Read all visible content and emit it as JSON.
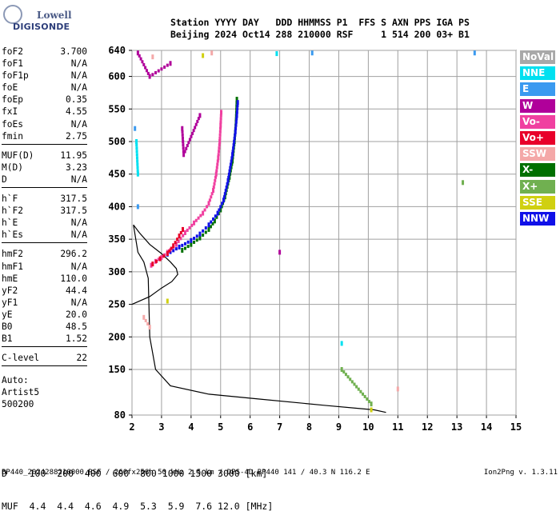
{
  "logo": {
    "line1": "Lowell",
    "line2": "DIGISONDE"
  },
  "header": {
    "line1": "Station YYYY DAY   DDD HHMMSS P1  FFS S AXN PPS IGA PS",
    "line2": "Beijing 2024 Oct14 288 210000 RSF     1 514 200 03+ B1"
  },
  "params": [
    {
      "label": "foF2",
      "value": "3.700"
    },
    {
      "label": "foF1",
      "value": "N/A"
    },
    {
      "label": "foF1p",
      "value": "N/A"
    },
    {
      "label": "foE",
      "value": "N/A"
    },
    {
      "label": "foEp",
      "value": "0.35"
    },
    {
      "label": "fxI",
      "value": "4.55"
    },
    {
      "label": "foEs",
      "value": "N/A"
    },
    {
      "label": "fmin",
      "value": "2.75"
    },
    {
      "sep": true
    },
    {
      "label": "MUF(D)",
      "value": "11.95"
    },
    {
      "label": "M(D)",
      "value": "3.23"
    },
    {
      "label": "D",
      "value": "N/A"
    },
    {
      "sep": true
    },
    {
      "label": "h`F",
      "value": "317.5"
    },
    {
      "label": "h`F2",
      "value": "317.5"
    },
    {
      "label": "h`E",
      "value": "N/A"
    },
    {
      "label": "h`Es",
      "value": "N/A"
    },
    {
      "sep": true
    },
    {
      "label": "hmF2",
      "value": "296.2"
    },
    {
      "label": "hmF1",
      "value": "N/A"
    },
    {
      "label": "hmE",
      "value": "110.0"
    },
    {
      "label": "yF2",
      "value": "44.4"
    },
    {
      "label": "yF1",
      "value": "N/A"
    },
    {
      "label": "yE",
      "value": "20.0"
    },
    {
      "label": "B0",
      "value": "48.5"
    },
    {
      "label": "B1",
      "value": "1.52"
    },
    {
      "sep": true
    },
    {
      "label": "C-level",
      "value": "22"
    },
    {
      "sep": true
    }
  ],
  "auto": {
    "line1": "Auto:",
    "line2": "Artist5",
    "line3": "500200"
  },
  "legend": [
    {
      "label": "NoVal",
      "color": "#a8a8a8"
    },
    {
      "label": "NNE",
      "color": "#00e0f0"
    },
    {
      "label": "E",
      "color": "#3a9af0"
    },
    {
      "label": "W",
      "color": "#b0009a"
    },
    {
      "label": "Vo-",
      "color": "#f040a0"
    },
    {
      "label": "Vo+",
      "color": "#e8002a"
    },
    {
      "label": "SSW",
      "color": "#f4a8a8"
    },
    {
      "label": "X-",
      "color": "#007000"
    },
    {
      "label": "X+",
      "color": "#70b050"
    },
    {
      "label": "SSE",
      "color": "#d0d010"
    },
    {
      "label": "NNW",
      "color": "#1010e8"
    }
  ],
  "muf_table": {
    "d_line": "D    100  200  400  600  800 1000 1500 3000 [km]",
    "muf_line": "MUF  4.4  4.4  4.6  4.9  5.3  5.9  7.6 12.0 [MHz]"
  },
  "footer": {
    "left": "BP440_2024288210000.RSF / 260fx256h 50 kHz 2.5 km / DPS-4D BP440 141 / 40.3 N 116.2 E",
    "right": "Ion2Png v. 1.3.11"
  },
  "chart_data": {
    "type": "scatter",
    "title": "",
    "xlabel": "",
    "ylabel": "",
    "xlim": [
      2,
      15
    ],
    "ylim": [
      80,
      640
    ],
    "x_ticks": [
      2,
      3,
      4,
      5,
      6,
      7,
      8,
      9,
      10,
      11,
      12,
      13,
      14,
      15
    ],
    "y_ticks": [
      80,
      150,
      200,
      250,
      300,
      350,
      400,
      450,
      500,
      550,
      600,
      640
    ],
    "grid": true,
    "series": [
      {
        "name": "X-",
        "color": "#007000",
        "points": [
          [
            3.7,
            333
          ],
          [
            4.0,
            342
          ],
          [
            4.3,
            352
          ],
          [
            4.6,
            365
          ],
          [
            4.8,
            378
          ],
          [
            5.0,
            395
          ],
          [
            5.15,
            415
          ],
          [
            5.3,
            445
          ],
          [
            5.4,
            470
          ],
          [
            5.47,
            500
          ],
          [
            5.52,
            530
          ],
          [
            5.55,
            565
          ]
        ]
      },
      {
        "name": "NNW",
        "color": "#1010e8",
        "points": [
          [
            3.2,
            327
          ],
          [
            3.6,
            338
          ],
          [
            4.0,
            348
          ],
          [
            4.3,
            358
          ],
          [
            4.6,
            372
          ],
          [
            4.9,
            390
          ],
          [
            5.1,
            410
          ],
          [
            5.25,
            440
          ],
          [
            5.4,
            480
          ],
          [
            5.5,
            515
          ],
          [
            5.55,
            540
          ],
          [
            5.58,
            560
          ]
        ]
      },
      {
        "name": "Vo-",
        "color": "#f040a0",
        "points": [
          [
            2.65,
            310
          ],
          [
            2.8,
            316
          ],
          [
            3.0,
            322
          ],
          [
            3.2,
            330
          ],
          [
            3.5,
            342
          ],
          [
            3.8,
            360
          ],
          [
            4.1,
            375
          ],
          [
            4.4,
            390
          ],
          [
            4.6,
            405
          ],
          [
            4.75,
            425
          ],
          [
            4.85,
            450
          ],
          [
            4.92,
            475
          ],
          [
            4.97,
            500
          ],
          [
            5.0,
            525
          ],
          [
            5.02,
            545
          ]
        ]
      },
      {
        "name": "Vo+",
        "color": "#e8002a",
        "points": [
          [
            2.7,
            312
          ],
          [
            2.95,
            320
          ],
          [
            3.2,
            328
          ],
          [
            3.4,
            340
          ],
          [
            3.6,
            355
          ],
          [
            3.72,
            365
          ]
        ]
      },
      {
        "name": "W",
        "color": "#b0009a",
        "points": [
          [
            2.2,
            636
          ],
          [
            2.6,
            600
          ],
          [
            3.3,
            620
          ],
          [
            3.7,
            520
          ],
          [
            3.75,
            480
          ],
          [
            4.3,
            540
          ],
          [
            7.0,
            330
          ]
        ]
      },
      {
        "name": "NNE",
        "color": "#00e0f0",
        "points": [
          [
            2.15,
            500
          ],
          [
            2.2,
            450
          ],
          [
            6.9,
            635
          ],
          [
            9.1,
            190
          ]
        ]
      },
      {
        "name": "E",
        "color": "#3a9af0",
        "points": [
          [
            2.1,
            520
          ],
          [
            2.2,
            400
          ],
          [
            8.1,
            636
          ],
          [
            13.6,
            636
          ]
        ]
      },
      {
        "name": "SSW",
        "color": "#f4a8a8",
        "points": [
          [
            2.7,
            630
          ],
          [
            2.4,
            230
          ],
          [
            2.6,
            215
          ],
          [
            4.7,
            636
          ],
          [
            11.0,
            120
          ]
        ]
      },
      {
        "name": "X+",
        "color": "#70b050",
        "points": [
          [
            13.2,
            437
          ],
          [
            9.1,
            150
          ],
          [
            10.1,
            97
          ]
        ]
      },
      {
        "name": "SSE",
        "color": "#d0d010",
        "points": [
          [
            4.4,
            632
          ],
          [
            3.2,
            255
          ],
          [
            10.1,
            88
          ]
        ]
      }
    ],
    "profile": [
      [
        2.0,
        250
      ],
      [
        2.6,
        262
      ],
      [
        3.0,
        275
      ],
      [
        3.35,
        285
      ],
      [
        3.55,
        296
      ],
      [
        3.5,
        305
      ],
      [
        3.3,
        315
      ],
      [
        3.0,
        328
      ],
      [
        2.6,
        342
      ],
      [
        2.25,
        360
      ],
      [
        2.05,
        372
      ],
      [
        2.2,
        330
      ],
      [
        2.4,
        315
      ],
      [
        2.55,
        290
      ],
      [
        2.6,
        200
      ],
      [
        2.8,
        150
      ],
      [
        3.3,
        125
      ],
      [
        4.6,
        112
      ],
      [
        6.2,
        105
      ],
      [
        8.5,
        95
      ],
      [
        10.2,
        88
      ],
      [
        10.6,
        84
      ]
    ]
  }
}
